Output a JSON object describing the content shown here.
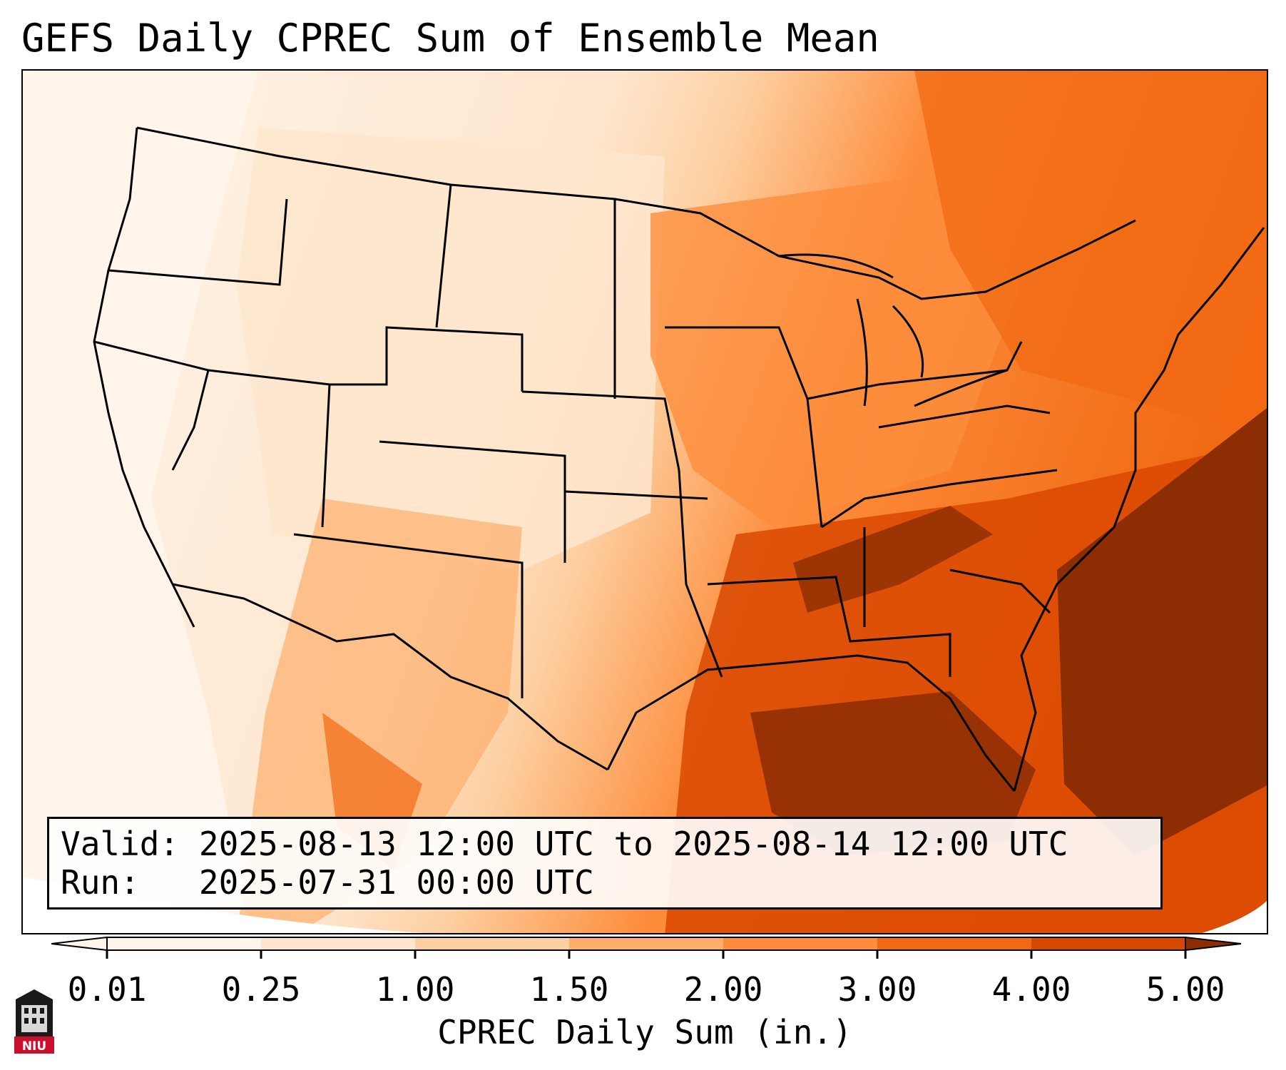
{
  "title": "GEFS Daily CPREC Sum of Ensemble Mean",
  "info": {
    "valid_label": "Valid:",
    "valid_value": "2025-08-13 12:00 UTC to 2025-08-14 12:00 UTC",
    "run_label": "Run:  ",
    "run_value": "2025-07-31 00:00 UTC"
  },
  "colorbar": {
    "label": "CPREC Daily Sum (in.)",
    "ticks": [
      "0.01",
      "0.25",
      "1.00",
      "1.50",
      "2.00",
      "3.00",
      "4.00",
      "5.00"
    ],
    "colors": [
      "#fff5eb",
      "#fee6ce",
      "#fdd0a2",
      "#fdae6b",
      "#fd8d3c",
      "#f16913",
      "#d94801",
      "#8c2d04"
    ]
  },
  "logo": {
    "text": "NIU",
    "color": "#c8102e"
  }
}
